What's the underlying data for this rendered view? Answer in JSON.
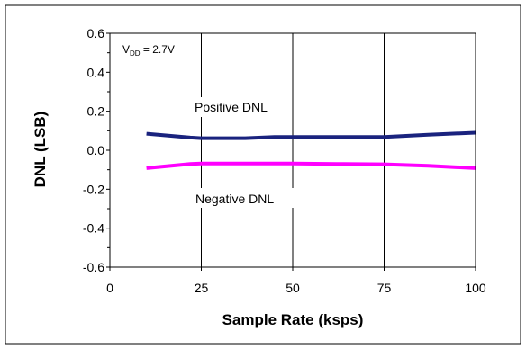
{
  "chart_data": {
    "type": "line",
    "xlabel": "Sample Rate (ksps)",
    "ylabel": "DNL (LSB)",
    "xlim": [
      0,
      100
    ],
    "ylim": [
      -0.6,
      0.6
    ],
    "x_ticks": [
      0,
      25,
      50,
      75,
      100
    ],
    "x_tick_labels": [
      "0",
      "25",
      "50",
      "75",
      "100"
    ],
    "y_ticks": [
      0.6,
      0.4,
      0.2,
      0.0,
      -0.2,
      -0.4,
      -0.6
    ],
    "y_tick_labels": [
      "0.6",
      "0.4",
      "0.2",
      "0.0",
      "-0.2",
      "-0.4",
      "-0.6"
    ],
    "grid": "vertical lines at x ticks",
    "annotation": {
      "prefix": "V",
      "sub": "DD",
      "suffix": " = 2.7V"
    },
    "series": [
      {
        "name": "Positive DNL",
        "color": "#1a237e",
        "x": [
          10,
          22,
          25,
          37,
          45,
          50,
          62,
          75,
          87,
          100
        ],
        "y": [
          0.085,
          0.065,
          0.062,
          0.062,
          0.068,
          0.068,
          0.068,
          0.068,
          0.08,
          0.09
        ]
      },
      {
        "name": "Negative DNL",
        "color": "#ff00ff",
        "x": [
          10,
          22,
          25,
          37,
          50,
          62,
          75,
          87,
          100
        ],
        "y": [
          -0.092,
          -0.07,
          -0.068,
          -0.068,
          -0.068,
          -0.07,
          -0.072,
          -0.08,
          -0.092
        ]
      }
    ]
  }
}
